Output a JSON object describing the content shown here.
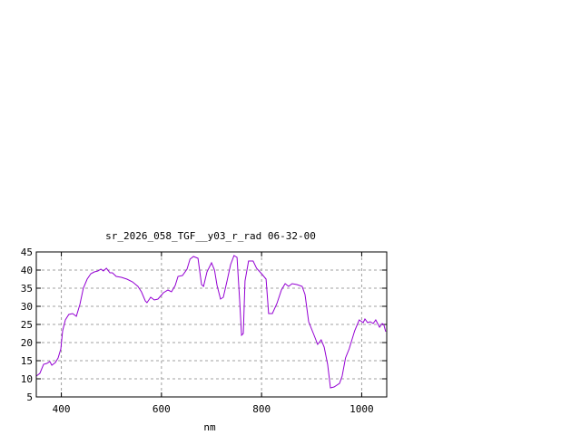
{
  "chart_data": {
    "type": "line",
    "title": "sr_2026_058_TGF__y03_r_rad 06-32-00",
    "xlabel": "nm",
    "ylabel": "",
    "xlim": [
      350,
      1050
    ],
    "ylim": [
      5,
      45
    ],
    "xticks": [
      400,
      600,
      800,
      1000
    ],
    "yticks": [
      5,
      10,
      15,
      20,
      25,
      30,
      35,
      40,
      45
    ],
    "grid": true,
    "line_color": "#9400d3",
    "series": [
      {
        "x": [
          350,
          357,
          364.5,
          371,
          377,
          381,
          388,
          393.5,
          399,
          402.6,
          408,
          415,
          422.5,
          430,
          437,
          444,
          451.5,
          459,
          466,
          473,
          479,
          484,
          490,
          497,
          502,
          509.6,
          520,
          531,
          542,
          553,
          560,
          567.6,
          571,
          578.5,
          585.8,
          593,
          604,
          613,
          620,
          627.5,
          633,
          642,
          651,
          657,
          664,
          673,
          680,
          684,
          691,
          700,
          706,
          711,
          718,
          723.6,
          731,
          738,
          745,
          751,
          756,
          760,
          763.5,
          767,
          774,
          783,
          790,
          800,
          809,
          814,
          821.5,
          830.5,
          839.6,
          847,
          854,
          861,
          870.5,
          881,
          886.8,
          894,
          905,
          912,
          919,
          925,
          932,
          937.6,
          944.8,
          955.7,
          961,
          967.6,
          975,
          986,
          995,
          1003,
          1006.5,
          1012,
          1017,
          1023,
          1028,
          1035.6,
          1041,
          1044,
          1048
        ],
        "y": [
          10.75,
          11.5,
          14,
          14.25,
          14.75,
          13.75,
          14.5,
          15.75,
          18.25,
          23.25,
          26.25,
          27.75,
          28,
          27.25,
          30.5,
          35,
          37.5,
          39,
          39.5,
          39.75,
          40.25,
          39.75,
          40.5,
          39.25,
          39.25,
          38.25,
          38,
          37.5,
          36.75,
          35.5,
          34,
          31.5,
          31,
          32.5,
          31.75,
          32,
          33.75,
          34.5,
          34,
          35.75,
          38.25,
          38.5,
          40.25,
          43,
          43.75,
          43.25,
          36,
          35.5,
          39.5,
          42,
          40,
          35.75,
          32,
          32.5,
          37,
          41.5,
          44,
          43.5,
          32,
          22,
          22.5,
          37,
          42.5,
          42.5,
          40.5,
          39,
          37.5,
          28,
          28,
          30.75,
          34.5,
          36.25,
          35.5,
          36.25,
          36,
          35.5,
          33.25,
          25.75,
          22,
          19.5,
          20.75,
          18.75,
          14,
          7.5,
          7.75,
          8.75,
          10.75,
          15.75,
          18.25,
          23.25,
          26.25,
          25.5,
          26.5,
          25.5,
          25.75,
          25.25,
          26.25,
          24.25,
          25.25,
          25,
          23
        ]
      }
    ]
  }
}
